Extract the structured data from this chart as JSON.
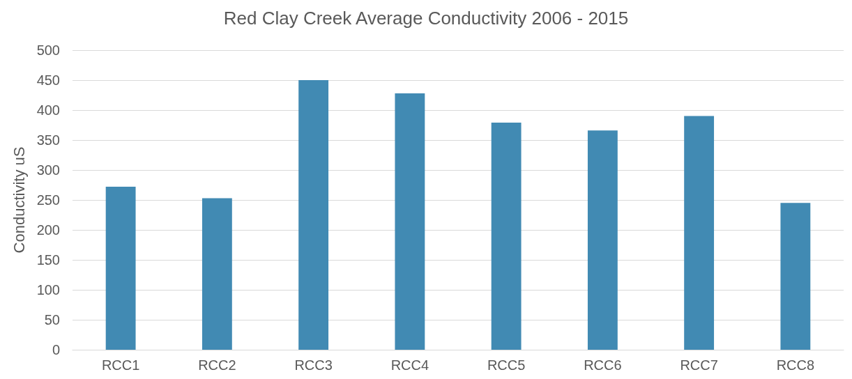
{
  "chart_data": {
    "type": "bar",
    "title": "Red Clay Creek Average Conductivity 2006 - 2015",
    "ylabel": "Conductivity uS",
    "categories": [
      "RCC1",
      "RCC2",
      "RCC3",
      "RCC4",
      "RCC5",
      "RCC6",
      "RCC7",
      "RCC8"
    ],
    "values": [
      272,
      253,
      450,
      428,
      379,
      366,
      390,
      245
    ],
    "color": "#418ab3",
    "ylim": [
      0,
      500
    ],
    "yticks": [
      0,
      50,
      100,
      150,
      200,
      250,
      300,
      350,
      400,
      450,
      500
    ],
    "grid": "y"
  }
}
